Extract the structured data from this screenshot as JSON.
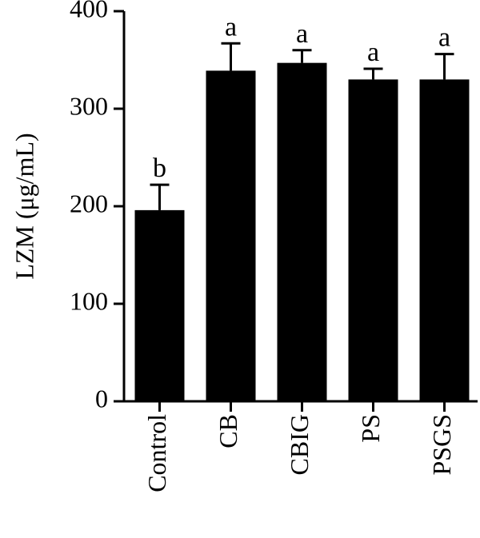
{
  "chart_data": {
    "type": "bar",
    "y_label": "LZM (μg/mL)",
    "categories": [
      "Control",
      "CB",
      "CBIG",
      "PS",
      "PSGS"
    ],
    "values": [
      196,
      339,
      347,
      330,
      330
    ],
    "errors": [
      26,
      28,
      13,
      11,
      26
    ],
    "labels": [
      "b",
      "a",
      "a",
      "a",
      "a"
    ],
    "color": "#000000",
    "ylim": [
      0,
      400
    ],
    "yticks": [
      0,
      100,
      200,
      300,
      400
    ],
    "grid": false
  }
}
